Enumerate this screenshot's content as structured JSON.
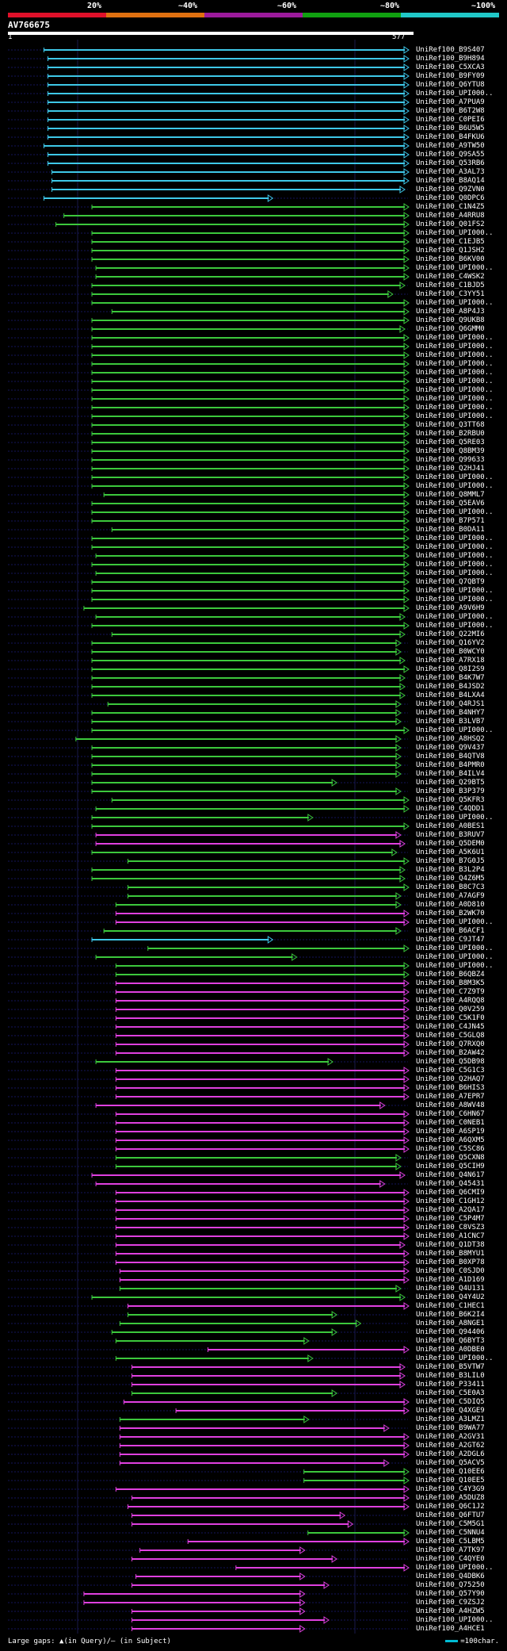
{
  "scale": {
    "labels": [
      "20%",
      "~40%",
      "~60%",
      "~80%",
      "~100%"
    ],
    "colors": [
      "#e0102a",
      "#e07010",
      "#9c1a9c",
      "#10a010",
      "#20c8c8"
    ]
  },
  "query": {
    "name": "AV766675",
    "start": "1",
    "end": "577"
  },
  "footer": {
    "gaps_text": "Large gaps: ▲(in Query)/– (in Subject)",
    "legend_text": "=100char."
  },
  "colors": {
    "cyan": "#3ec8e8",
    "green": "#3cc83c",
    "magenta": "#e040e0"
  },
  "hits": [
    {
      "name": "UniRef100_B9S407",
      "c": "cyan",
      "s": 0.09,
      "e": 1.0
    },
    {
      "name": "UniRef100_B9H894",
      "c": "cyan",
      "s": 0.1,
      "e": 1.0
    },
    {
      "name": "UniRef100_C5XCA3",
      "c": "cyan",
      "s": 0.1,
      "e": 1.0
    },
    {
      "name": "UniRef100_B9FY09",
      "c": "cyan",
      "s": 0.1,
      "e": 1.0
    },
    {
      "name": "UniRef100_Q6YTU8",
      "c": "cyan",
      "s": 0.1,
      "e": 1.0
    },
    {
      "name": "UniRef100_UPI000..",
      "c": "cyan",
      "s": 0.1,
      "e": 1.0
    },
    {
      "name": "UniRef100_A7PUA9",
      "c": "cyan",
      "s": 0.1,
      "e": 1.0
    },
    {
      "name": "UniRef100_B6T2W8",
      "c": "cyan",
      "s": 0.1,
      "e": 1.0
    },
    {
      "name": "UniRef100_C0PEI6",
      "c": "cyan",
      "s": 0.1,
      "e": 1.0
    },
    {
      "name": "UniRef100_B6U5W5",
      "c": "cyan",
      "s": 0.1,
      "e": 1.0
    },
    {
      "name": "UniRef100_B4FKU6",
      "c": "cyan",
      "s": 0.1,
      "e": 1.0
    },
    {
      "name": "UniRef100_A9TW50",
      "c": "cyan",
      "s": 0.09,
      "e": 1.0
    },
    {
      "name": "UniRef100_Q9SA55",
      "c": "cyan",
      "s": 0.1,
      "e": 1.0
    },
    {
      "name": "UniRef100_Q53RB6",
      "c": "cyan",
      "s": 0.1,
      "e": 1.0
    },
    {
      "name": "UniRef100_A3AL73",
      "c": "cyan",
      "s": 0.11,
      "e": 1.0
    },
    {
      "name": "UniRef100_B8AQ14",
      "c": "cyan",
      "s": 0.11,
      "e": 1.0
    },
    {
      "name": "UniRef100_Q9ZVN0",
      "c": "cyan",
      "s": 0.11,
      "e": 0.99
    },
    {
      "name": "UniRef100_Q0DPC6",
      "c": "cyan",
      "s": 0.09,
      "e": 0.66
    },
    {
      "name": "UniRef100_C1N4Z5",
      "c": "green",
      "s": 0.21,
      "e": 1.0
    },
    {
      "name": "UniRef100_A4RRU8",
      "c": "green",
      "s": 0.14,
      "e": 1.0
    },
    {
      "name": "UniRef100_Q01FS2",
      "c": "green",
      "s": 0.12,
      "e": 1.0
    },
    {
      "name": "UniRef100_UPI000..",
      "c": "green",
      "s": 0.21,
      "e": 1.0
    },
    {
      "name": "UniRef100_C1EJB5",
      "c": "green",
      "s": 0.21,
      "e": 1.0
    },
    {
      "name": "UniRef100_Q1JSH2",
      "c": "green",
      "s": 0.21,
      "e": 1.0
    },
    {
      "name": "UniRef100_B6KV00",
      "c": "green",
      "s": 0.21,
      "e": 1.0
    },
    {
      "name": "UniRef100_UPI000..",
      "c": "green",
      "s": 0.22,
      "e": 1.0
    },
    {
      "name": "UniRef100_C4WSK2",
      "c": "green",
      "s": 0.22,
      "e": 1.0
    },
    {
      "name": "UniRef100_C1BJD5",
      "c": "green",
      "s": 0.21,
      "e": 0.99
    },
    {
      "name": "UniRef100_C3YY51",
      "c": "green",
      "s": 0.21,
      "e": 0.96
    },
    {
      "name": "UniRef100_UPI000..",
      "c": "green",
      "s": 0.21,
      "e": 1.0
    },
    {
      "name": "UniRef100_A8P4J3",
      "c": "green",
      "s": 0.26,
      "e": 1.0
    },
    {
      "name": "UniRef100_Q9UKB8",
      "c": "green",
      "s": 0.21,
      "e": 1.0
    },
    {
      "name": "UniRef100_Q6GMM0",
      "c": "green",
      "s": 0.21,
      "e": 0.99
    },
    {
      "name": "UniRef100_UPI000..",
      "c": "green",
      "s": 0.21,
      "e": 1.0
    },
    {
      "name": "UniRef100_UPI000..",
      "c": "green",
      "s": 0.21,
      "e": 1.0
    },
    {
      "name": "UniRef100_UPI000..",
      "c": "green",
      "s": 0.21,
      "e": 1.0
    },
    {
      "name": "UniRef100_UPI000..",
      "c": "green",
      "s": 0.21,
      "e": 1.0
    },
    {
      "name": "UniRef100_UPI000..",
      "c": "green",
      "s": 0.21,
      "e": 1.0
    },
    {
      "name": "UniRef100_UPI000..",
      "c": "green",
      "s": 0.21,
      "e": 1.0
    },
    {
      "name": "UniRef100_UPI000..",
      "c": "green",
      "s": 0.21,
      "e": 1.0
    },
    {
      "name": "UniRef100_UPI000..",
      "c": "green",
      "s": 0.21,
      "e": 1.0
    },
    {
      "name": "UniRef100_UPI000..",
      "c": "green",
      "s": 0.21,
      "e": 1.0
    },
    {
      "name": "UniRef100_UPI000..",
      "c": "green",
      "s": 0.21,
      "e": 1.0
    },
    {
      "name": "UniRef100_Q3TT68",
      "c": "green",
      "s": 0.21,
      "e": 1.0
    },
    {
      "name": "UniRef100_B2RBU0",
      "c": "green",
      "s": 0.21,
      "e": 1.0
    },
    {
      "name": "UniRef100_Q5RE03",
      "c": "green",
      "s": 0.21,
      "e": 1.0
    },
    {
      "name": "UniRef100_Q8BM39",
      "c": "green",
      "s": 0.21,
      "e": 1.0
    },
    {
      "name": "UniRef100_Q99633",
      "c": "green",
      "s": 0.21,
      "e": 1.0
    },
    {
      "name": "UniRef100_Q2HJ41",
      "c": "green",
      "s": 0.21,
      "e": 1.0
    },
    {
      "name": "UniRef100_UPI000..",
      "c": "green",
      "s": 0.21,
      "e": 1.0
    },
    {
      "name": "UniRef100_UPI000..",
      "c": "green",
      "s": 0.21,
      "e": 1.0
    },
    {
      "name": "UniRef100_Q8MML7",
      "c": "green",
      "s": 0.24,
      "e": 1.0
    },
    {
      "name": "UniRef100_Q5EAV6",
      "c": "green",
      "s": 0.21,
      "e": 1.0
    },
    {
      "name": "UniRef100_UPI000..",
      "c": "green",
      "s": 0.21,
      "e": 1.0
    },
    {
      "name": "UniRef100_B7P571",
      "c": "green",
      "s": 0.21,
      "e": 1.0
    },
    {
      "name": "UniRef100_B0DA11",
      "c": "green",
      "s": 0.26,
      "e": 1.0
    },
    {
      "name": "UniRef100_UPI000..",
      "c": "green",
      "s": 0.21,
      "e": 1.0
    },
    {
      "name": "UniRef100_UPI000..",
      "c": "green",
      "s": 0.21,
      "e": 1.0
    },
    {
      "name": "UniRef100_UPI000..",
      "c": "green",
      "s": 0.22,
      "e": 1.0
    },
    {
      "name": "UniRef100_UPI000..",
      "c": "green",
      "s": 0.21,
      "e": 1.0
    },
    {
      "name": "UniRef100_UPI000..",
      "c": "green",
      "s": 0.22,
      "e": 1.0
    },
    {
      "name": "UniRef100_Q7QBT9",
      "c": "green",
      "s": 0.21,
      "e": 1.0
    },
    {
      "name": "UniRef100_UPI000..",
      "c": "green",
      "s": 0.21,
      "e": 1.0
    },
    {
      "name": "UniRef100_UPI000..",
      "c": "green",
      "s": 0.21,
      "e": 1.0
    },
    {
      "name": "UniRef100_A9V6H9",
      "c": "green",
      "s": 0.19,
      "e": 1.0
    },
    {
      "name": "UniRef100_UPI000..",
      "c": "green",
      "s": 0.22,
      "e": 0.99
    },
    {
      "name": "UniRef100_UPI000..",
      "c": "green",
      "s": 0.21,
      "e": 1.0
    },
    {
      "name": "UniRef100_Q22MI6",
      "c": "green",
      "s": 0.26,
      "e": 0.99
    },
    {
      "name": "UniRef100_Q16YV2",
      "c": "green",
      "s": 0.21,
      "e": 0.98
    },
    {
      "name": "UniRef100_B0WCY0",
      "c": "green",
      "s": 0.21,
      "e": 0.98
    },
    {
      "name": "UniRef100_A7RX18",
      "c": "green",
      "s": 0.21,
      "e": 0.99
    },
    {
      "name": "UniRef100_Q8I2S9",
      "c": "green",
      "s": 0.21,
      "e": 1.0
    },
    {
      "name": "UniRef100_B4K7W7",
      "c": "green",
      "s": 0.21,
      "e": 0.99
    },
    {
      "name": "UniRef100_B4JSD2",
      "c": "green",
      "s": 0.21,
      "e": 0.99
    },
    {
      "name": "UniRef100_B4LXA4",
      "c": "green",
      "s": 0.21,
      "e": 0.99
    },
    {
      "name": "UniRef100_Q4RJS1",
      "c": "green",
      "s": 0.25,
      "e": 0.98
    },
    {
      "name": "UniRef100_B4NHY7",
      "c": "green",
      "s": 0.21,
      "e": 0.98
    },
    {
      "name": "UniRef100_B3LVB7",
      "c": "green",
      "s": 0.21,
      "e": 0.98
    },
    {
      "name": "UniRef100_UPI000..",
      "c": "green",
      "s": 0.21,
      "e": 1.0
    },
    {
      "name": "UniRef100_A8HSQ2",
      "c": "green",
      "s": 0.17,
      "e": 0.98
    },
    {
      "name": "UniRef100_Q9V437",
      "c": "green",
      "s": 0.21,
      "e": 0.98
    },
    {
      "name": "UniRef100_B4QTV8",
      "c": "green",
      "s": 0.21,
      "e": 0.98
    },
    {
      "name": "UniRef100_B4PMR0",
      "c": "green",
      "s": 0.21,
      "e": 0.98
    },
    {
      "name": "UniRef100_B4ILV4",
      "c": "green",
      "s": 0.21,
      "e": 0.98
    },
    {
      "name": "UniRef100_Q29BT5",
      "c": "green",
      "s": 0.21,
      "e": 0.82
    },
    {
      "name": "UniRef100_B3P379",
      "c": "green",
      "s": 0.21,
      "e": 0.98
    },
    {
      "name": "UniRef100_Q5KFR3",
      "c": "green",
      "s": 0.26,
      "e": 1.0
    },
    {
      "name": "UniRef100_C4QDD1",
      "c": "green",
      "s": 0.22,
      "e": 1.0
    },
    {
      "name": "UniRef100_UPI000..",
      "c": "green",
      "s": 0.21,
      "e": 0.76
    },
    {
      "name": "UniRef100_A0BES1",
      "c": "green",
      "s": 0.21,
      "e": 1.0
    },
    {
      "name": "UniRef100_B3RUV7",
      "c": "magenta",
      "s": 0.22,
      "e": 0.98
    },
    {
      "name": "UniRef100_Q5DEM0",
      "c": "magenta",
      "s": 0.22,
      "e": 0.99
    },
    {
      "name": "UniRef100_A5K6U1",
      "c": "green",
      "s": 0.21,
      "e": 0.97
    },
    {
      "name": "UniRef100_B7G0J5",
      "c": "green",
      "s": 0.3,
      "e": 1.0
    },
    {
      "name": "UniRef100_B3L2P4",
      "c": "green",
      "s": 0.21,
      "e": 0.99
    },
    {
      "name": "UniRef100_Q4Z6M5",
      "c": "green",
      "s": 0.21,
      "e": 0.99
    },
    {
      "name": "UniRef100_B8C7C3",
      "c": "green",
      "s": 0.3,
      "e": 1.0
    },
    {
      "name": "UniRef100_A7AGF9",
      "c": "green",
      "s": 0.3,
      "e": 0.98
    },
    {
      "name": "UniRef100_A0D810",
      "c": "green",
      "s": 0.27,
      "e": 0.98
    },
    {
      "name": "UniRef100_B2WK70",
      "c": "magenta",
      "s": 0.27,
      "e": 1.0
    },
    {
      "name": "UniRef100_UPI000..",
      "c": "magenta",
      "s": 0.27,
      "e": 1.0
    },
    {
      "name": "UniRef100_B6ACF1",
      "c": "green",
      "s": 0.24,
      "e": 0.98
    },
    {
      "name": "UniRef100_C9JT47",
      "c": "cyan",
      "s": 0.21,
      "e": 0.66
    },
    {
      "name": "UniRef100_UPI000..",
      "c": "green",
      "s": 0.35,
      "e": 1.0
    },
    {
      "name": "UniRef100_UPI000..",
      "c": "green",
      "s": 0.22,
      "e": 0.72
    },
    {
      "name": "UniRef100_UPI000..",
      "c": "green",
      "s": 0.27,
      "e": 1.0
    },
    {
      "name": "UniRef100_B6QBZ4",
      "c": "green",
      "s": 0.27,
      "e": 1.0
    },
    {
      "name": "UniRef100_B8M3K5",
      "c": "magenta",
      "s": 0.27,
      "e": 1.0
    },
    {
      "name": "UniRef100_C7Z9T9",
      "c": "magenta",
      "s": 0.27,
      "e": 1.0
    },
    {
      "name": "UniRef100_A4RQQ8",
      "c": "magenta",
      "s": 0.27,
      "e": 1.0
    },
    {
      "name": "UniRef100_Q0V259",
      "c": "magenta",
      "s": 0.27,
      "e": 1.0
    },
    {
      "name": "UniRef100_C5K1F0",
      "c": "magenta",
      "s": 0.27,
      "e": 1.0
    },
    {
      "name": "UniRef100_C4JN45",
      "c": "magenta",
      "s": 0.27,
      "e": 1.0
    },
    {
      "name": "UniRef100_C5GLQ8",
      "c": "magenta",
      "s": 0.27,
      "e": 1.0
    },
    {
      "name": "UniRef100_Q7RXQ0",
      "c": "magenta",
      "s": 0.27,
      "e": 1.0
    },
    {
      "name": "UniRef100_B2AW42",
      "c": "magenta",
      "s": 0.27,
      "e": 1.0
    },
    {
      "name": "UniRef100_Q5DB98",
      "c": "green",
      "s": 0.22,
      "e": 0.81
    },
    {
      "name": "UniRef100_C5G1C3",
      "c": "magenta",
      "s": 0.27,
      "e": 1.0
    },
    {
      "name": "UniRef100_Q2HAQ7",
      "c": "magenta",
      "s": 0.27,
      "e": 1.0
    },
    {
      "name": "UniRef100_B6HIS3",
      "c": "magenta",
      "s": 0.27,
      "e": 1.0
    },
    {
      "name": "UniRef100_A7EPR7",
      "c": "magenta",
      "s": 0.27,
      "e": 1.0
    },
    {
      "name": "UniRef100_A8WV48",
      "c": "magenta",
      "s": 0.22,
      "e": 0.94
    },
    {
      "name": "UniRef100_C6HN67",
      "c": "magenta",
      "s": 0.27,
      "e": 1.0
    },
    {
      "name": "UniRef100_C0NEB1",
      "c": "magenta",
      "s": 0.27,
      "e": 1.0
    },
    {
      "name": "UniRef100_A6SP19",
      "c": "magenta",
      "s": 0.27,
      "e": 1.0
    },
    {
      "name": "UniRef100_A6QXM5",
      "c": "magenta",
      "s": 0.27,
      "e": 1.0
    },
    {
      "name": "UniRef100_C5SC86",
      "c": "magenta",
      "s": 0.27,
      "e": 1.0
    },
    {
      "name": "UniRef100_Q5CXN8",
      "c": "green",
      "s": 0.27,
      "e": 0.98
    },
    {
      "name": "UniRef100_Q5CIH9",
      "c": "green",
      "s": 0.27,
      "e": 0.98
    },
    {
      "name": "UniRef100_Q4N617",
      "c": "magenta",
      "s": 0.21,
      "e": 0.99
    },
    {
      "name": "UniRef100_Q45431",
      "c": "magenta",
      "s": 0.22,
      "e": 0.94
    },
    {
      "name": "UniRef100_Q6CMI9",
      "c": "magenta",
      "s": 0.27,
      "e": 1.0
    },
    {
      "name": "UniRef100_C1GH12",
      "c": "magenta",
      "s": 0.27,
      "e": 1.0
    },
    {
      "name": "UniRef100_A2QA17",
      "c": "magenta",
      "s": 0.27,
      "e": 1.0
    },
    {
      "name": "UniRef100_C5P4M7",
      "c": "magenta",
      "s": 0.27,
      "e": 1.0
    },
    {
      "name": "UniRef100_C8VSZ3",
      "c": "magenta",
      "s": 0.27,
      "e": 1.0
    },
    {
      "name": "UniRef100_A1CNC7",
      "c": "magenta",
      "s": 0.27,
      "e": 1.0
    },
    {
      "name": "UniRef100_Q1DT38",
      "c": "magenta",
      "s": 0.27,
      "e": 0.99
    },
    {
      "name": "UniRef100_B8MYU1",
      "c": "magenta",
      "s": 0.27,
      "e": 1.0
    },
    {
      "name": "UniRef100_B0XP78",
      "c": "magenta",
      "s": 0.27,
      "e": 1.0
    },
    {
      "name": "UniRef100_C0SJD0",
      "c": "magenta",
      "s": 0.28,
      "e": 1.0
    },
    {
      "name": "UniRef100_A1D169",
      "c": "magenta",
      "s": 0.28,
      "e": 1.0
    },
    {
      "name": "UniRef100_Q4U131",
      "c": "green",
      "s": 0.28,
      "e": 0.98
    },
    {
      "name": "UniRef100_Q4Y4U2",
      "c": "green",
      "s": 0.21,
      "e": 0.99
    },
    {
      "name": "UniRef100_C1HEC1",
      "c": "magenta",
      "s": 0.3,
      "e": 1.0
    },
    {
      "name": "UniRef100_B6K2I4",
      "c": "green",
      "s": 0.3,
      "e": 0.82
    },
    {
      "name": "UniRef100_A8NGE1",
      "c": "green",
      "s": 0.28,
      "e": 0.88
    },
    {
      "name": "UniRef100_Q94406",
      "c": "green",
      "s": 0.26,
      "e": 0.82
    },
    {
      "name": "UniRef100_Q6BYT3",
      "c": "green",
      "s": 0.27,
      "e": 0.75
    },
    {
      "name": "UniRef100_A0DBE0",
      "c": "magenta",
      "s": 0.5,
      "e": 1.0
    },
    {
      "name": "UniRef100_UPI000..",
      "c": "green",
      "s": 0.27,
      "e": 0.76
    },
    {
      "name": "UniRef100_B5VTW7",
      "c": "magenta",
      "s": 0.31,
      "e": 0.99
    },
    {
      "name": "UniRef100_B3LIL0",
      "c": "magenta",
      "s": 0.31,
      "e": 0.99
    },
    {
      "name": "UniRef100_P33411",
      "c": "magenta",
      "s": 0.31,
      "e": 0.99
    },
    {
      "name": "UniRef100_C5E0A3",
      "c": "green",
      "s": 0.31,
      "e": 0.82
    },
    {
      "name": "UniRef100_C5DIQ5",
      "c": "magenta",
      "s": 0.29,
      "e": 1.0
    },
    {
      "name": "UniRef100_Q4XGE9",
      "c": "magenta",
      "s": 0.42,
      "e": 1.0
    },
    {
      "name": "UniRef100_A3LMZ1",
      "c": "green",
      "s": 0.28,
      "e": 0.75
    },
    {
      "name": "UniRef100_B9WA77",
      "c": "magenta",
      "s": 0.28,
      "e": 0.95
    },
    {
      "name": "UniRef100_A2GV31",
      "c": "magenta",
      "s": 0.28,
      "e": 1.0
    },
    {
      "name": "UniRef100_A2GT62",
      "c": "magenta",
      "s": 0.28,
      "e": 1.0
    },
    {
      "name": "UniRef100_A2DGL6",
      "c": "magenta",
      "s": 0.28,
      "e": 1.0
    },
    {
      "name": "UniRef100_Q5ACV5",
      "c": "magenta",
      "s": 0.28,
      "e": 0.95
    },
    {
      "name": "UniRef100_Q10EE6",
      "c": "green",
      "s": 0.74,
      "e": 1.0
    },
    {
      "name": "UniRef100_Q10EE5",
      "c": "green",
      "s": 0.74,
      "e": 1.0
    },
    {
      "name": "UniRef100_C4Y3G9",
      "c": "magenta",
      "s": 0.27,
      "e": 1.0
    },
    {
      "name": "UniRef100_A5DUZ8",
      "c": "magenta",
      "s": 0.31,
      "e": 1.0
    },
    {
      "name": "UniRef100_Q6C1J2",
      "c": "magenta",
      "s": 0.3,
      "e": 1.0
    },
    {
      "name": "UniRef100_Q6FTU7",
      "c": "magenta",
      "s": 0.31,
      "e": 0.84
    },
    {
      "name": "UniRef100_C5M5G1",
      "c": "magenta",
      "s": 0.31,
      "e": 0.86
    },
    {
      "name": "UniRef100_C5NNU4",
      "c": "green",
      "s": 0.75,
      "e": 1.0
    },
    {
      "name": "UniRef100_C5LBM5",
      "c": "magenta",
      "s": 0.45,
      "e": 1.0
    },
    {
      "name": "UniRef100_A7TK97",
      "c": "magenta",
      "s": 0.33,
      "e": 0.74
    },
    {
      "name": "UniRef100_C4QYE0",
      "c": "magenta",
      "s": 0.31,
      "e": 0.82
    },
    {
      "name": "UniRef100_UPI000..",
      "c": "magenta",
      "s": 0.57,
      "e": 1.0
    },
    {
      "name": "UniRef100_Q4DBK6",
      "c": "magenta",
      "s": 0.32,
      "e": 0.74
    },
    {
      "name": "UniRef100_Q75250",
      "c": "magenta",
      "s": 0.31,
      "e": 0.8
    },
    {
      "name": "UniRef100_Q57Y90",
      "c": "magenta",
      "s": 0.19,
      "e": 0.74
    },
    {
      "name": "UniRef100_C9ZSJ2",
      "c": "magenta",
      "s": 0.19,
      "e": 0.74
    },
    {
      "name": "UniRef100_A4HZW5",
      "c": "magenta",
      "s": 0.31,
      "e": 0.74
    },
    {
      "name": "UniRef100_UPI000..",
      "c": "magenta",
      "s": 0.31,
      "e": 0.8
    },
    {
      "name": "UniRef100_A4HCE1",
      "c": "magenta",
      "s": 0.31,
      "e": 0.74
    }
  ]
}
